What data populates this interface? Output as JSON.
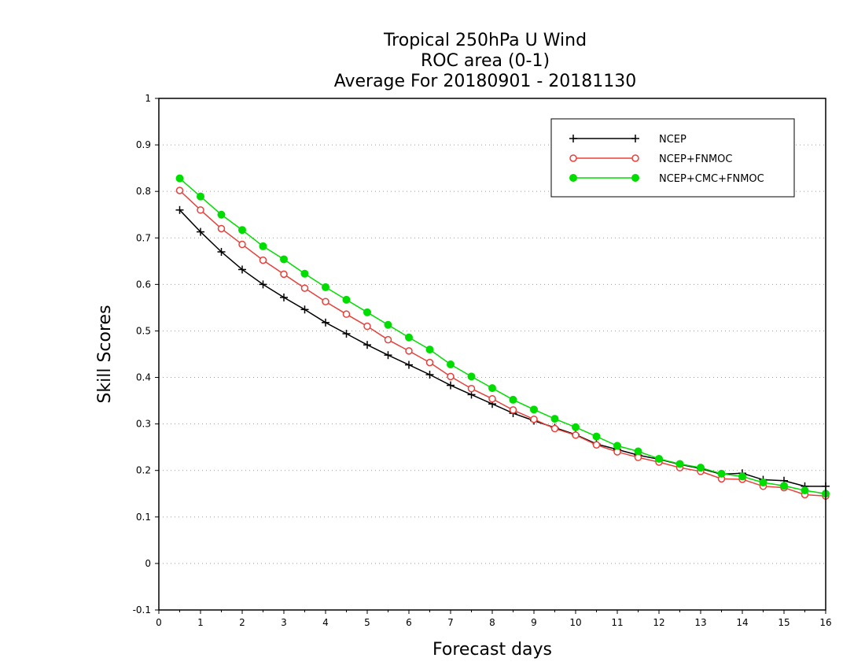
{
  "chart_data": {
    "type": "line",
    "title_lines": [
      "Tropical 250hPa U Wind",
      "ROC area (0-1)",
      "Average For 20180901 - 20181130"
    ],
    "xlabel": "Forecast days",
    "ylabel": "Skill Scores",
    "xlim": [
      0,
      16
    ],
    "ylim": [
      -0.1,
      1
    ],
    "x_ticks": [
      "0",
      "1",
      "2",
      "3",
      "4",
      "5",
      "6",
      "7",
      "8",
      "9",
      "10",
      "11",
      "12",
      "13",
      "14",
      "15",
      "16"
    ],
    "y_ticks": [
      "-0.1",
      "0",
      "0.1",
      "0.2",
      "0.3",
      "0.4",
      "0.5",
      "0.6",
      "0.7",
      "0.8",
      "0.9",
      "1"
    ],
    "grid": "horizontal-dotted",
    "legend": "top-right",
    "x": [
      0.5,
      1,
      1.5,
      2,
      2.5,
      3,
      3.5,
      4,
      4.5,
      5,
      5.5,
      6,
      6.5,
      7,
      7.5,
      8,
      8.5,
      9,
      9.5,
      10,
      10.5,
      11,
      11.5,
      12,
      12.5,
      13,
      13.5,
      14,
      14.5,
      15,
      15.5,
      16
    ],
    "series": [
      {
        "name": "NCEP",
        "color": "#000000",
        "marker": "plus",
        "values": [
          0.76,
          0.713,
          0.67,
          0.632,
          0.6,
          0.572,
          0.546,
          0.518,
          0.494,
          0.47,
          0.448,
          0.427,
          0.406,
          0.383,
          0.363,
          0.343,
          0.323,
          0.307,
          0.292,
          0.277,
          0.257,
          0.245,
          0.233,
          0.224,
          0.213,
          0.204,
          0.192,
          0.194,
          0.18,
          0.178,
          0.166,
          0.166
        ]
      },
      {
        "name": "NCEP+FNMOC",
        "color": "#e8403a",
        "marker": "open-circle",
        "values": [
          0.802,
          0.76,
          0.72,
          0.686,
          0.652,
          0.622,
          0.592,
          0.563,
          0.536,
          0.51,
          0.481,
          0.457,
          0.432,
          0.402,
          0.376,
          0.354,
          0.33,
          0.31,
          0.29,
          0.276,
          0.255,
          0.24,
          0.228,
          0.218,
          0.206,
          0.198,
          0.182,
          0.181,
          0.166,
          0.163,
          0.148,
          0.145
        ]
      },
      {
        "name": "NCEP+CMC+FNMOC",
        "color": "#00dd00",
        "marker": "filled-circle",
        "values": [
          0.828,
          0.789,
          0.75,
          0.717,
          0.682,
          0.654,
          0.623,
          0.594,
          0.567,
          0.54,
          0.513,
          0.486,
          0.46,
          0.428,
          0.402,
          0.377,
          0.352,
          0.331,
          0.311,
          0.293,
          0.273,
          0.253,
          0.241,
          0.225,
          0.214,
          0.206,
          0.193,
          0.187,
          0.174,
          0.167,
          0.157,
          0.15
        ]
      }
    ]
  }
}
